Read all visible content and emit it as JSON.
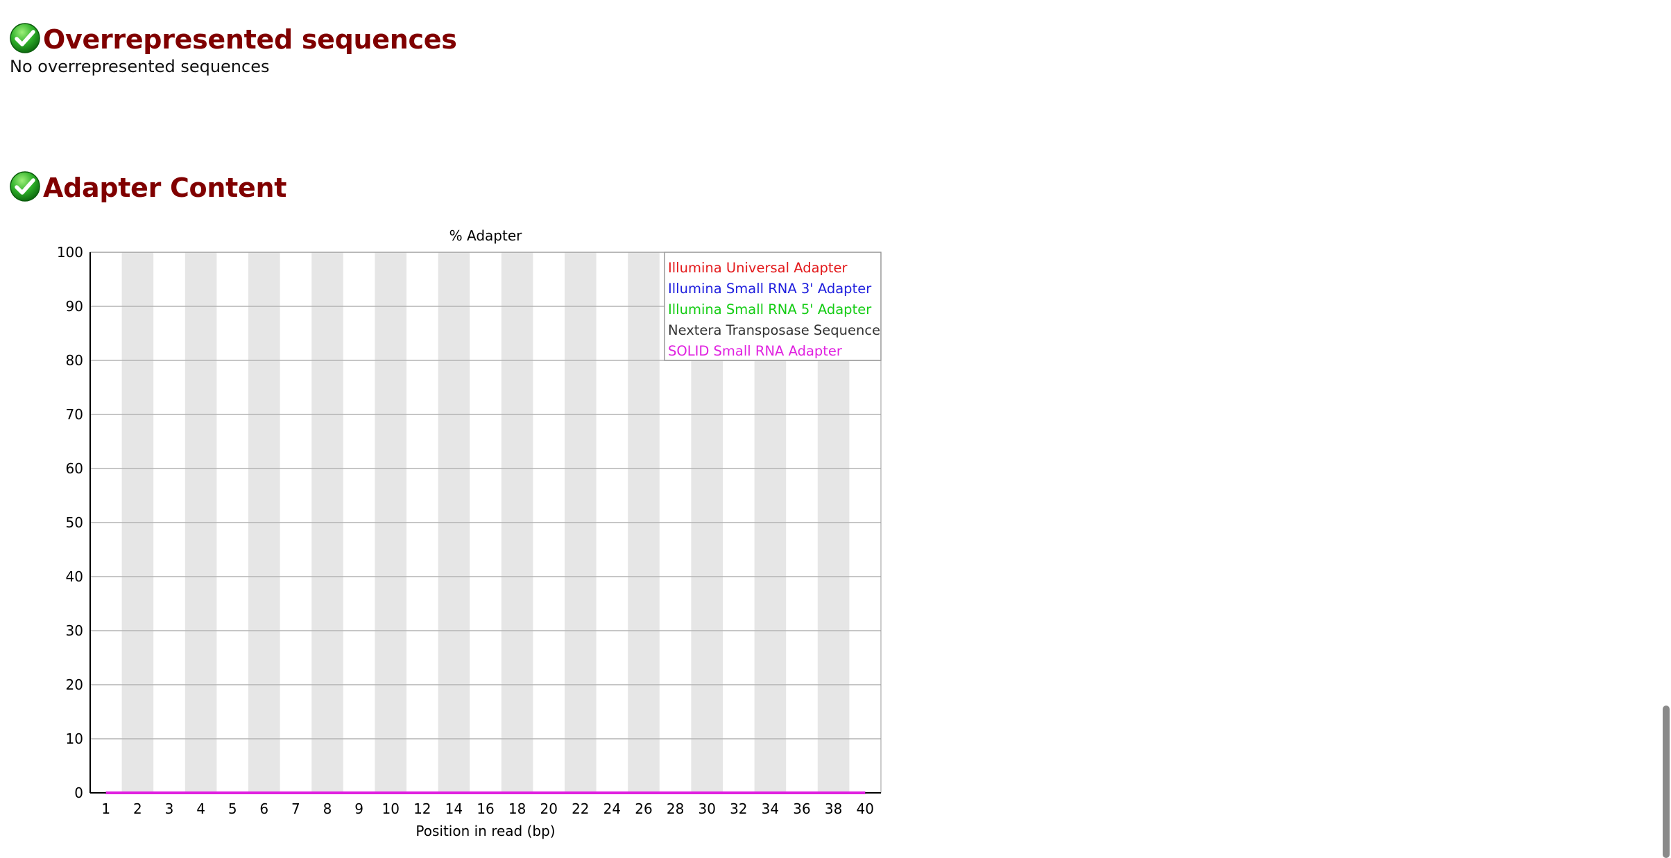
{
  "sections": {
    "overrepresented": {
      "title": "Overrepresented sequences",
      "status_icon": "pass-check-icon",
      "message": "No overrepresented sequences"
    },
    "adapter": {
      "title": "Adapter Content",
      "status_icon": "pass-check-icon"
    }
  },
  "colors": {
    "heading": "#800000",
    "stripe": "#e6e6e6",
    "grid": "#b4b4b4",
    "axis": "#000000"
  },
  "chart_data": {
    "type": "line",
    "title": "% Adapter",
    "xlabel": "Position in read (bp)",
    "ylabel": "",
    "x_ticks": [
      "1",
      "2",
      "3",
      "4",
      "5",
      "6",
      "7",
      "8",
      "9",
      "10",
      "12",
      "14",
      "16",
      "18",
      "20",
      "22",
      "24",
      "26",
      "28",
      "30",
      "32",
      "34",
      "36",
      "38",
      "40"
    ],
    "ylim": [
      0,
      100
    ],
    "y_ticks": [
      0,
      10,
      20,
      30,
      40,
      50,
      60,
      70,
      80,
      90,
      100
    ],
    "grid": true,
    "legend_position": "top-right",
    "series": [
      {
        "name": "Illumina Universal Adapter",
        "color": "#e31a1c",
        "values": [
          0,
          0,
          0,
          0,
          0,
          0,
          0,
          0,
          0,
          0,
          0,
          0,
          0,
          0,
          0,
          0,
          0,
          0,
          0,
          0,
          0,
          0,
          0,
          0,
          0
        ]
      },
      {
        "name": "Illumina Small RNA 3' Adapter",
        "color": "#1f1fdd",
        "values": [
          0,
          0,
          0,
          0,
          0,
          0,
          0,
          0,
          0,
          0,
          0,
          0,
          0,
          0,
          0,
          0,
          0,
          0,
          0,
          0,
          0,
          0,
          0,
          0,
          0
        ]
      },
      {
        "name": "Illumina Small RNA 5' Adapter",
        "color": "#14cc14",
        "values": [
          0,
          0,
          0,
          0,
          0,
          0,
          0,
          0,
          0,
          0,
          0,
          0,
          0,
          0,
          0,
          0,
          0,
          0,
          0,
          0,
          0,
          0,
          0,
          0,
          0
        ]
      },
      {
        "name": "Nextera Transposase Sequence",
        "color": "#333333",
        "values": [
          0,
          0,
          0,
          0,
          0,
          0,
          0,
          0,
          0,
          0,
          0,
          0,
          0,
          0,
          0,
          0,
          0,
          0,
          0,
          0,
          0,
          0,
          0,
          0,
          0
        ]
      },
      {
        "name": "SOLID Small RNA Adapter",
        "color": "#e020e0",
        "values": [
          0,
          0,
          0,
          0,
          0,
          0,
          0,
          0,
          0,
          0,
          0,
          0,
          0,
          0,
          0,
          0,
          0,
          0,
          0,
          0,
          0,
          0,
          0,
          0,
          0
        ]
      }
    ]
  }
}
